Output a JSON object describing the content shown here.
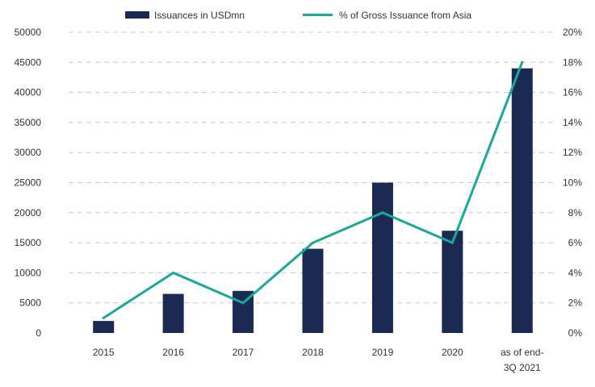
{
  "colors": {
    "bar": "#1b2a52",
    "line": "#1aa898",
    "grid": "#c8c8c8",
    "text": "#333333"
  },
  "chart_data": {
    "type": "bar",
    "categories": [
      "2015",
      "2016",
      "2017",
      "2018",
      "2019",
      "2020",
      "as of end-\n3Q 2021"
    ],
    "series": [
      {
        "name": "Issuances in USDmn",
        "type": "bar",
        "axis": "left",
        "values": [
          2000,
          6500,
          7000,
          14000,
          25000,
          17000,
          44000
        ]
      },
      {
        "name": "% of Gross Issuance from Asia",
        "type": "line",
        "axis": "right",
        "values": [
          1,
          4,
          2,
          6,
          8,
          6,
          18
        ]
      }
    ],
    "y_left": {
      "range": [
        0,
        50000
      ],
      "ticks": [
        "0",
        "5000",
        "10000",
        "15000",
        "20000",
        "25000",
        "30000",
        "35000",
        "40000",
        "45000",
        "50000"
      ]
    },
    "y_right": {
      "range": [
        0,
        20
      ],
      "ticks": [
        "0%",
        "2%",
        "4%",
        "6%",
        "8%",
        "10%",
        "12%",
        "14%",
        "16%",
        "18%",
        "20%"
      ]
    },
    "grid": true,
    "legend_position": "top"
  }
}
